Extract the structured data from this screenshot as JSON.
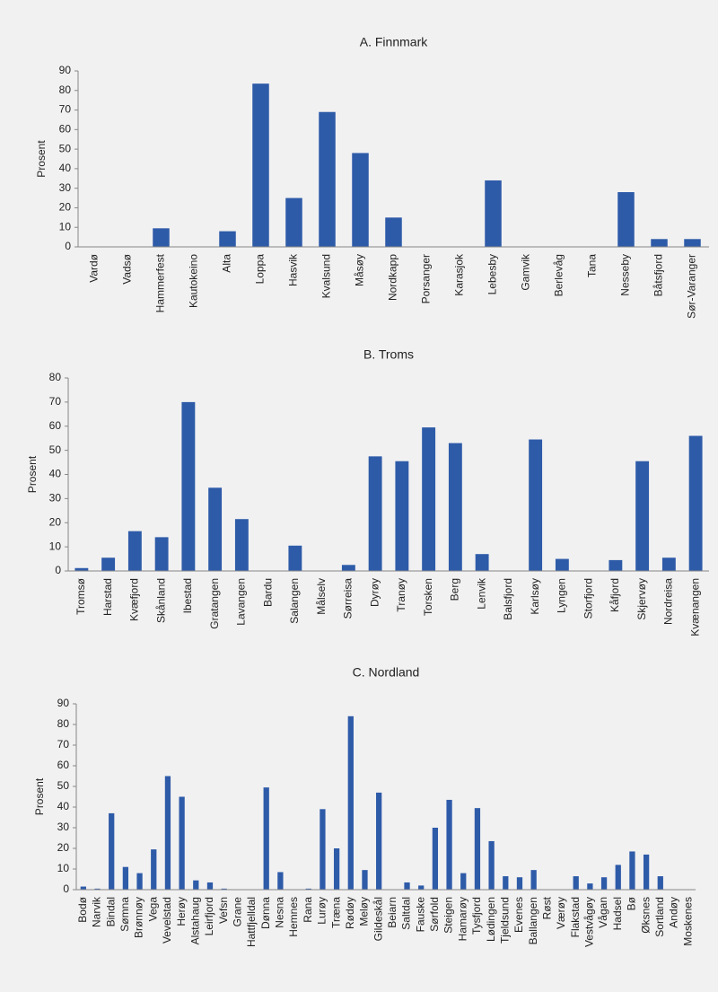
{
  "chart_data": [
    {
      "type": "bar",
      "title": "A. Finnmark",
      "y_label": "Prosent",
      "color": "#2e5ba8",
      "categories": [
        "Vardø",
        "Vadsø",
        "Hammerfest",
        "Kautokeino",
        "Alta",
        "Loppa",
        "Hasvik",
        "Kvalsund",
        "Måsøy",
        "Nordkapp",
        "Porsanger",
        "Karasjok",
        "Lebesby",
        "Gamvik",
        "Berlevåg",
        "Tana",
        "Nesseby",
        "Båtsfjord",
        "Sør-Varanger"
      ],
      "values": [
        0,
        0,
        9.5,
        0,
        8,
        83.5,
        25,
        69,
        48,
        15,
        0,
        0,
        34,
        0,
        0,
        0,
        28,
        4,
        4
      ],
      "ylim": [
        0,
        90
      ],
      "yticks": [
        0,
        10,
        20,
        30,
        40,
        50,
        60,
        70,
        80,
        90
      ]
    },
    {
      "type": "bar",
      "title": "B. Troms",
      "y_label": "Prosent",
      "color": "#2e5ba8",
      "categories": [
        "Tromsø",
        "Harstad",
        "Kvæfjord",
        "Skånland",
        "Ibestad",
        "Gratangen",
        "Lavangen",
        "Bardu",
        "Salangen",
        "Målselv",
        "Sørreisa",
        "Dyrøy",
        "Tranøy",
        "Torsken",
        "Berg",
        "Lenvik",
        "Balsfjord",
        "Karlsøy",
        "Lyngen",
        "Storfjord",
        "Kåfjord",
        "Skjervøy",
        "Nordreisa",
        "Kvænangen"
      ],
      "values": [
        1.2,
        5.5,
        16.5,
        14,
        70,
        34.5,
        21.5,
        0,
        10.5,
        0,
        2.5,
        47.5,
        45.5,
        59.5,
        53,
        7,
        0,
        54.5,
        5,
        0,
        4.5,
        45.5,
        5.5,
        56
      ],
      "ylim": [
        0,
        80
      ],
      "yticks": [
        0,
        10,
        20,
        30,
        40,
        50,
        60,
        70,
        80
      ]
    },
    {
      "type": "bar",
      "title": "C. Nordland",
      "y_label": "Prosent",
      "color": "#2e5ba8",
      "categories": [
        "Bodø",
        "Narvik",
        "Bindal",
        "Sømna",
        "Brønnøy",
        "Vega",
        "Vevelstad",
        "Herøy",
        "Alstahaug",
        "Leirfjord",
        "Vefsn",
        "Grane",
        "Hattfjelldal",
        "Dønna",
        "Nesna",
        "Hemnes",
        "Rana",
        "Lurøy",
        "Træna",
        "Rødøy",
        "Meløy",
        "Gildeskål",
        "Beiarn",
        "Saltdal",
        "Fauske",
        "Sørfold",
        "Steigen",
        "Hamarøy",
        "Tysfjord",
        "Lødingen",
        "Tjeldsund",
        "Evenes",
        "Ballangen",
        "Røst",
        "Værøy",
        "Flakstad",
        "Vestvågøy",
        "Vågan",
        "Hadsel",
        "Bø",
        "Øksnes",
        "Sortland",
        "Andøy",
        "Moskenes"
      ],
      "values": [
        1.5,
        0.5,
        37,
        11,
        8,
        19.5,
        55,
        45,
        4.5,
        3.5,
        0.5,
        0,
        0,
        49.5,
        8.5,
        0,
        0.5,
        39,
        20,
        84,
        9.5,
        47,
        0,
        3.5,
        2,
        30,
        43.5,
        8,
        39.5,
        23.5,
        6.5,
        6,
        9.5,
        0,
        0,
        6.5,
        3,
        6,
        12,
        18.5,
        17,
        6.5,
        0,
        0
      ],
      "ylim": [
        0,
        90
      ],
      "yticks": [
        0,
        10,
        20,
        30,
        40,
        50,
        60,
        70,
        80,
        90
      ]
    }
  ]
}
